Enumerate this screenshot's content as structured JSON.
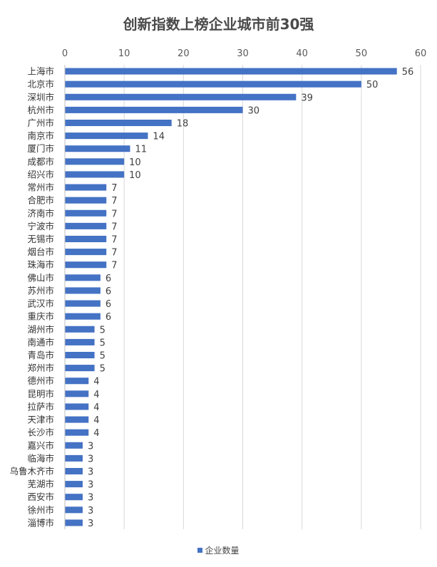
{
  "chart_data": {
    "type": "bar",
    "orientation": "horizontal",
    "title": "创新指数上榜企业城市前30强",
    "categories": [
      "上海市",
      "北京市",
      "深圳市",
      "杭州市",
      "广州市",
      "南京市",
      "厦门市",
      "成都市",
      "绍兴市",
      "常州市",
      "合肥市",
      "济南市",
      "宁波市",
      "无锡市",
      "烟台市",
      "珠海市",
      "佛山市",
      "苏州市",
      "武汉市",
      "重庆市",
      "湖州市",
      "南通市",
      "青岛市",
      "郑州市",
      "德州市",
      "昆明市",
      "拉萨市",
      "天津市",
      "长沙市",
      "嘉兴市",
      "临海市",
      "乌鲁木齐市",
      "芜湖市",
      "西安市",
      "徐州市",
      "淄博市"
    ],
    "series": [
      {
        "name": "企业数量",
        "values": [
          56,
          50,
          39,
          30,
          18,
          14,
          11,
          10,
          10,
          7,
          7,
          7,
          7,
          7,
          7,
          7,
          6,
          6,
          6,
          6,
          5,
          5,
          5,
          5,
          4,
          4,
          4,
          4,
          4,
          3,
          3,
          3,
          3,
          3,
          3,
          3
        ]
      }
    ],
    "x_ticks": [
      "0",
      "10",
      "20",
      "30",
      "40",
      "50",
      "60"
    ],
    "xlim": [
      0,
      60
    ],
    "x_axis_position": "top",
    "grid": true,
    "legend": "bottom",
    "color": "#4472c4"
  }
}
